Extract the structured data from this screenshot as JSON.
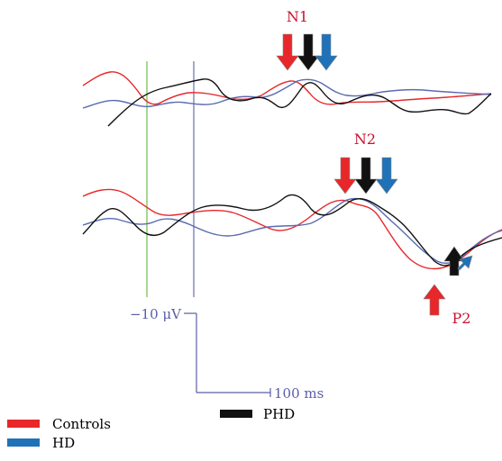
{
  "chart_data": {
    "type": "line",
    "annotations": {
      "n1": "N1",
      "n2": "N2",
      "p2": "P2"
    },
    "scale_bar": {
      "amplitude_label": "−10 μV",
      "time_label": "100 ms"
    },
    "legend": [
      {
        "label": "Controls",
        "color": "#e8272a"
      },
      {
        "label": "HD",
        "color": "#1f72b8"
      },
      {
        "label": "PHD",
        "color": "#111111"
      }
    ],
    "colors": {
      "controls": "#e8272a",
      "hd": "#5a6bb0",
      "phd": "#111111",
      "marker_green": "#6cbf4e",
      "marker_blue": "#6b6fb0",
      "label_red": "#c8102e",
      "scale_blue": "#5b5ea6"
    }
  }
}
